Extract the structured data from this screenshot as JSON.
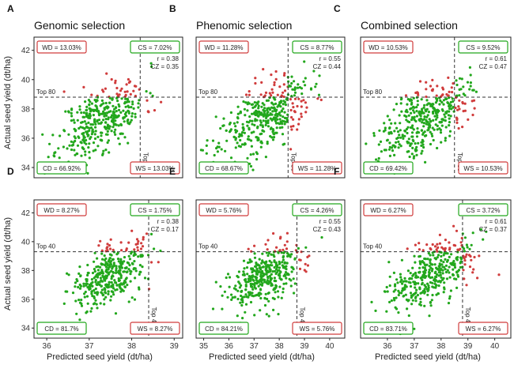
{
  "figure": {
    "x_axis_label": "Predicted seed yield (dt/ha)",
    "y_axis_label": "Actual seed yield (dt/ha)"
  },
  "colors": {
    "correct_points": "#22a71c",
    "wrong_points": "#d03c3c",
    "box_green": "#22a71c",
    "box_red": "#d03c3c",
    "threshold_line": "#333333",
    "frame": "#222222"
  },
  "chart_data": [
    {
      "id": "A",
      "panel_letter": "A",
      "title": "Genomic selection",
      "type": "scatter",
      "xlim": [
        35.7,
        39.2
      ],
      "ylim": [
        33.3,
        42.9
      ],
      "x_ticks": [],
      "y_ticks": [
        34,
        36,
        38,
        40,
        42
      ],
      "center": [
        37.3,
        37.3
      ],
      "spread": [
        0.5,
        1.3
      ],
      "seed": 11,
      "x_threshold": 38.2,
      "y_threshold": 38.8,
      "label_h": "Top 80",
      "label_v": "Top 80",
      "WD": "WD = 13.03%",
      "CS": "CS = 7.02%",
      "CD": "CD = 66.92%",
      "WS": "WS = 13.03%",
      "r": "r = 0.38",
      "CZ": "CZ = 0.35"
    },
    {
      "id": "B",
      "panel_letter": "B",
      "title": "Phenomic selection",
      "type": "scatter",
      "xlim": [
        34.7,
        40.6
      ],
      "ylim": [
        33.3,
        42.9
      ],
      "x_ticks": [],
      "y_ticks": [],
      "center": [
        37.4,
        37.4
      ],
      "spread": [
        0.9,
        1.3
      ],
      "seed": 23,
      "x_threshold": 38.35,
      "y_threshold": 38.8,
      "label_h": "Top 80",
      "label_v": "Top 80",
      "WD": "WD = 11.28%",
      "CS": "CS = 8.77%",
      "CD": "CD = 68.67%",
      "WS": "WS = 11.28%",
      "r": "r = 0.55",
      "CZ": "CZ = 0.44"
    },
    {
      "id": "C",
      "panel_letter": "C",
      "title": "Combined selection",
      "type": "scatter",
      "xlim": [
        35.0,
        40.6
      ],
      "ylim": [
        33.3,
        42.9
      ],
      "x_ticks": [],
      "y_ticks": [],
      "center": [
        37.4,
        37.4
      ],
      "spread": [
        0.8,
        1.3
      ],
      "seed": 37,
      "x_threshold": 38.5,
      "y_threshold": 38.8,
      "label_h": "Top 80",
      "label_v": "Top 80",
      "WD": "WD = 10.53%",
      "CS": "CS = 9.52%",
      "CD": "CD = 69.42%",
      "WS": "WS = 10.53%",
      "r": "r = 0.61",
      "CZ": "CZ = 0.47"
    },
    {
      "id": "D",
      "panel_letter": "D",
      "title": "",
      "type": "scatter",
      "xlim": [
        35.7,
        39.2
      ],
      "ylim": [
        33.3,
        42.9
      ],
      "x_ticks": [
        36,
        37,
        38,
        39
      ],
      "y_ticks": [
        34,
        36,
        38,
        40,
        42
      ],
      "center": [
        37.5,
        37.7
      ],
      "spread": [
        0.45,
        1.2
      ],
      "seed": 41,
      "x_threshold": 38.4,
      "y_threshold": 39.3,
      "label_h": "Top 40",
      "label_v": "Top 40",
      "WD": "WD = 8.27%",
      "CS": "CS = 1.75%",
      "CD": "CD = 81.7%",
      "WS": "WS = 8.27%",
      "r": "r = 0.38",
      "CZ": "CZ = 0.17"
    },
    {
      "id": "E",
      "panel_letter": "E",
      "title": "",
      "type": "scatter",
      "xlim": [
        34.7,
        40.6
      ],
      "ylim": [
        33.3,
        42.9
      ],
      "x_ticks": [
        35,
        36,
        37,
        38,
        39,
        40
      ],
      "y_ticks": [],
      "center": [
        37.5,
        37.6
      ],
      "spread": [
        0.8,
        1.2
      ],
      "seed": 53,
      "x_threshold": 38.7,
      "y_threshold": 39.3,
      "label_h": "Top 40",
      "label_v": "Top 40",
      "WD": "WD = 5.76%",
      "CS": "CS = 4.26%",
      "CD": "CD = 84.21%",
      "WS": "WS = 5.76%",
      "r": "r = 0.55",
      "CZ": "CZ = 0.43"
    },
    {
      "id": "F",
      "panel_letter": "F",
      "title": "",
      "type": "scatter",
      "xlim": [
        35.0,
        40.6
      ],
      "ylim": [
        33.3,
        42.9
      ],
      "x_ticks": [
        36,
        37,
        38,
        39,
        40
      ],
      "y_ticks": [],
      "center": [
        37.6,
        37.6
      ],
      "spread": [
        0.75,
        1.2
      ],
      "seed": 67,
      "x_threshold": 38.8,
      "y_threshold": 39.3,
      "label_h": "Top 40",
      "label_v": "Top 40",
      "WD": "WD = 6.27%",
      "CS": "CS = 3.72%",
      "CD": "CD = 83.71%",
      "WS": "WS = 6.27%",
      "r": "r = 0.61",
      "CZ": "CZ = 0.37"
    }
  ]
}
